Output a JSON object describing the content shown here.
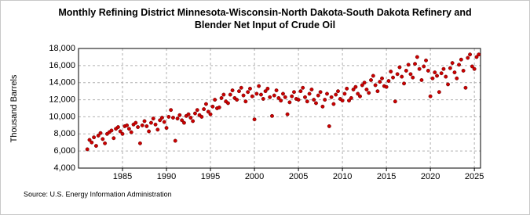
{
  "chart_data": {
    "type": "scatter",
    "title": "Monthly Refining District Minnesota-Wisconsin-North Dakota-South Dakota Refinery and Blender Net Input of Crude Oil",
    "y_label": "Thousand Barrels",
    "source": "Source: U.S. Energy Information Administration",
    "color": "#cc0000",
    "grid": true,
    "xlim": [
      1980,
      2025.7
    ],
    "ylim": [
      4000,
      18000
    ],
    "xticks": [
      1985,
      1990,
      1995,
      2000,
      2005,
      2010,
      2015,
      2020,
      2025
    ],
    "yticks": [
      {
        "value": 4000,
        "label": "4,000"
      },
      {
        "value": 6000,
        "label": "6,000"
      },
      {
        "value": 8000,
        "label": "8,000"
      },
      {
        "value": 10000,
        "label": "10,000"
      },
      {
        "value": 12000,
        "label": "12,000"
      },
      {
        "value": 14000,
        "label": "14,000"
      },
      {
        "value": 16000,
        "label": "16,000"
      },
      {
        "value": 18000,
        "label": "18,000"
      }
    ],
    "x": [
      1981,
      1981.25,
      1981.5,
      1981.75,
      1982,
      1982.25,
      1982.5,
      1982.75,
      1983,
      1983.25,
      1983.5,
      1983.75,
      1984,
      1984.25,
      1984.5,
      1984.75,
      1985,
      1985.25,
      1985.5,
      1985.75,
      1986,
      1986.25,
      1986.5,
      1986.75,
      1987,
      1987.25,
      1987.5,
      1987.75,
      1988,
      1988.25,
      1988.5,
      1988.75,
      1989,
      1989.25,
      1989.5,
      1989.75,
      1990,
      1990.25,
      1990.5,
      1990.75,
      1991,
      1991.25,
      1991.5,
      1991.75,
      1992,
      1992.25,
      1992.5,
      1992.75,
      1993,
      1993.25,
      1993.5,
      1993.75,
      1994,
      1994.25,
      1994.5,
      1994.75,
      1995,
      1995.25,
      1995.5,
      1995.75,
      1996,
      1996.25,
      1996.5,
      1996.75,
      1997,
      1997.25,
      1997.5,
      1997.75,
      1998,
      1998.25,
      1998.5,
      1998.75,
      1999,
      1999.25,
      1999.5,
      1999.75,
      2000,
      2000.25,
      2000.5,
      2000.75,
      2001,
      2001.25,
      2001.5,
      2001.75,
      2002,
      2002.25,
      2002.5,
      2002.75,
      2003,
      2003.25,
      2003.5,
      2003.75,
      2004,
      2004.25,
      2004.5,
      2004.75,
      2005,
      2005.25,
      2005.5,
      2005.75,
      2006,
      2006.25,
      2006.5,
      2006.75,
      2007,
      2007.25,
      2007.5,
      2007.75,
      2008,
      2008.25,
      2008.5,
      2008.75,
      2009,
      2009.25,
      2009.5,
      2009.75,
      2010,
      2010.25,
      2010.5,
      2010.75,
      2011,
      2011.25,
      2011.5,
      2011.75,
      2012,
      2012.25,
      2012.5,
      2012.75,
      2013,
      2013.25,
      2013.5,
      2013.75,
      2014,
      2014.25,
      2014.5,
      2014.75,
      2015,
      2015.25,
      2015.5,
      2015.75,
      2016,
      2016.25,
      2016.5,
      2016.75,
      2017,
      2017.25,
      2017.5,
      2017.75,
      2018,
      2018.25,
      2018.5,
      2018.75,
      2019,
      2019.25,
      2019.5,
      2019.75,
      2020,
      2020.25,
      2020.5,
      2020.75,
      2021,
      2021.25,
      2021.5,
      2021.75,
      2022,
      2022.25,
      2022.5,
      2022.75,
      2023,
      2023.25,
      2023.5,
      2023.75,
      2024,
      2024.25,
      2024.5,
      2024.75,
      2025,
      2025.25,
      2025.5
    ],
    "values": [
      6200,
      7300,
      7000,
      7600,
      6600,
      7800,
      8100,
      7400,
      6900,
      8000,
      8200,
      8400,
      7500,
      8600,
      8800,
      8300,
      8000,
      8900,
      9000,
      8600,
      8200,
      9100,
      9300,
      8800,
      6900,
      9000,
      9500,
      8900,
      8300,
      9300,
      9800,
      9100,
      8500,
      9600,
      9900,
      9400,
      8700,
      10000,
      10800,
      9900,
      7200,
      9800,
      10200,
      9600,
      9300,
      10100,
      10300,
      9900,
      9500,
      10400,
      10800,
      10200,
      10000,
      10900,
      11500,
      10600,
      10300,
      11200,
      12000,
      11000,
      11100,
      12200,
      12600,
      11800,
      11600,
      12600,
      13100,
      12200,
      12000,
      13000,
      13400,
      12500,
      11800,
      12900,
      13300,
      12400,
      9700,
      12700,
      13600,
      12600,
      12100,
      13000,
      13300,
      12300,
      10100,
      12500,
      13100,
      12200,
      11900,
      12700,
      12300,
      10300,
      11700,
      12400,
      12900,
      12100,
      12000,
      13000,
      13400,
      12300,
      11800,
      12700,
      13200,
      12000,
      11600,
      12500,
      12900,
      11200,
      12000,
      12700,
      8900,
      12300,
      11500,
      12600,
      13000,
      12100,
      11900,
      12700,
      13300,
      11900,
      12200,
      13200,
      13500,
      12700,
      12400,
      13700,
      14000,
      13200,
      12800,
      14300,
      14800,
      13700,
      13000,
      14100,
      14500,
      13600,
      13500,
      14200,
      15300,
      14600,
      11800,
      15000,
      15800,
      14700,
      13900,
      15400,
      16100,
      15000,
      14600,
      16200,
      17000,
      15600,
      14300,
      15900,
      16600,
      15400,
      12400,
      14500,
      15200,
      14800,
      12900,
      15100,
      15600,
      14700,
      13800,
      15700,
      16300,
      15200,
      14500,
      16100,
      16700,
      15400,
      13400,
      16900,
      17300,
      15900,
      15600,
      17000,
      17300
    ]
  }
}
